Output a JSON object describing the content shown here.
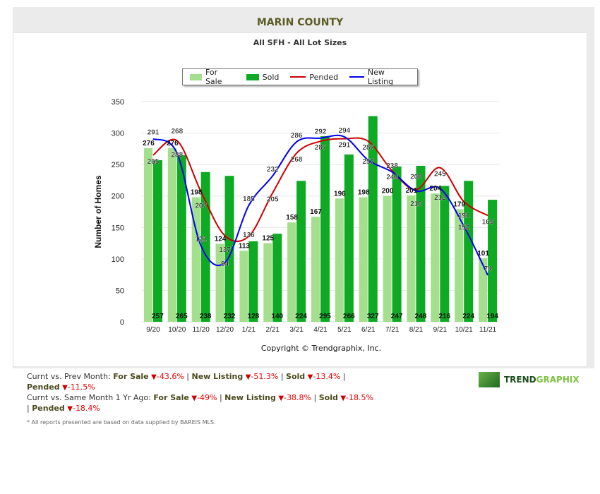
{
  "header": {
    "title": "MARIN COUNTY",
    "subtitle": "All SFH - All Lot Sizes"
  },
  "chart_data": {
    "type": "bar+line",
    "ylabel": "Number of Homes",
    "ylim": [
      0,
      350
    ],
    "yticks": [
      0,
      50,
      100,
      150,
      200,
      250,
      300,
      350
    ],
    "categories": [
      "9/20",
      "10/20",
      "11/20",
      "12/20",
      "1/21",
      "2/21",
      "3/21",
      "4/21",
      "5/21",
      "6/21",
      "7/21",
      "8/21",
      "9/21",
      "10/21",
      "11/21"
    ],
    "series": [
      {
        "name": "For Sale",
        "kind": "bar",
        "color": "#a3df8c",
        "values": [
          276,
          276,
          198,
          124,
          113,
          125,
          158,
          167,
          196,
          198,
          200,
          201,
          204,
          179,
          101
        ]
      },
      {
        "name": "Sold",
        "kind": "bar",
        "color": "#0eaa24",
        "values": [
          257,
          265,
          238,
          232,
          128,
          140,
          224,
          295,
          266,
          327,
          247,
          248,
          216,
          224,
          194
        ]
      },
      {
        "name": "Pended",
        "kind": "line",
        "color": "#cc0000",
        "values": [
          265,
          288,
          207,
          137,
          136,
          205,
          268,
          287,
          291,
          287,
          240,
          210,
          245,
          191,
          169
        ]
      },
      {
        "name": "New Listing",
        "kind": "line",
        "color": "#0000ee",
        "values": [
          291,
          268,
          121,
          94,
          185,
          232,
          286,
          292,
          294,
          257,
          238,
          208,
          212,
          152,
          74
        ]
      }
    ],
    "legend": "top-center",
    "grid": true
  },
  "copyright": "Copyright © Trendgraphix, Inc.",
  "stats": {
    "prev_label": "Curnt vs. Prev Month:",
    "prev": [
      {
        "k": "For Sale",
        "v": "-43.6%"
      },
      {
        "k": "New Listing",
        "v": "-51.3%"
      },
      {
        "k": "Sold",
        "v": "-13.4%"
      },
      {
        "k": "Pended",
        "v": "-11.5%"
      }
    ],
    "yr_label": "Curnt vs. Same Month 1 Yr Ago:",
    "yr": [
      {
        "k": "For Sale",
        "v": "-49%"
      },
      {
        "k": "New Listing",
        "v": "-38.8%"
      },
      {
        "k": "Sold",
        "v": "-18.5%"
      },
      {
        "k": "Pended",
        "v": "-18.4%"
      }
    ]
  },
  "note": "* All reports presented are based on data supplied by BAREIS MLS.",
  "logo": {
    "a": "TREND",
    "b": "GRAPHIX"
  }
}
